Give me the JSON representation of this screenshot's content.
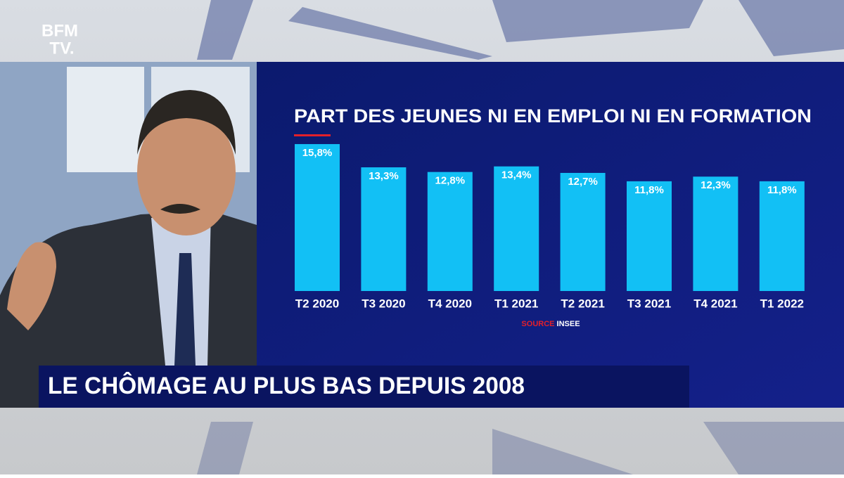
{
  "logo": {
    "line1": "BFM",
    "line2": "TV."
  },
  "headline": "LE CHÔMAGE AU PLUS BAS DEPUIS 2008",
  "chart_data": {
    "type": "bar",
    "title": "PART DES JEUNES NI EN EMPLOI NI EN FORMATION",
    "categories": [
      "T2 2020",
      "T3 2020",
      "T4 2020",
      "T1 2021",
      "T2 2021",
      "T3 2021",
      "T4 2021",
      "T1 2022"
    ],
    "values": [
      15.8,
      13.3,
      12.8,
      13.4,
      12.7,
      11.8,
      12.3,
      11.8
    ],
    "value_labels": [
      "15,8%",
      "13,3%",
      "12,8%",
      "13,4%",
      "12,7%",
      "11,8%",
      "12,3%",
      "11,8%"
    ],
    "color": "#12c0f5",
    "source_label": "SOURCE",
    "source": "INSEE"
  }
}
